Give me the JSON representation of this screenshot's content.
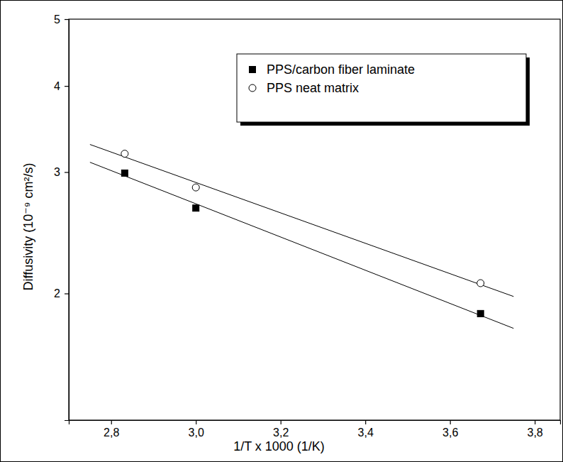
{
  "chart_data": {
    "type": "scatter",
    "x_label": "1/T x 1000 (1/K)",
    "y_label": "Diffusivity (10⁻⁹ cm²/s)",
    "log": "y",
    "legend": "upper right",
    "xlim": [
      2.7,
      3.86
    ],
    "xticks": [
      {
        "value": 2.8,
        "label": "2,8"
      },
      {
        "value": 3.0,
        "label": "3,0"
      },
      {
        "value": 3.2,
        "label": "3,2"
      },
      {
        "value": 3.4,
        "label": "3,4"
      },
      {
        "value": 3.6,
        "label": "3,6"
      },
      {
        "value": 3.8,
        "label": "3,8"
      }
    ],
    "ylim": [
      1.31,
      5
    ],
    "yticks": [
      2,
      3,
      4,
      5
    ],
    "series": [
      {
        "name": "PPS/carbon fiber laminate",
        "color": "#000000",
        "marker": "filled-square",
        "x": [
          2.832,
          3.0,
          3.672
        ],
        "values": [
          2.99,
          2.66,
          1.87
        ],
        "fit": {
          "x": [
            2.75,
            3.75
          ],
          "values": [
            3.1,
            1.78
          ]
        }
      },
      {
        "name": "PPS neat matrix",
        "color": "#000000",
        "marker": "open-circle",
        "x": [
          2.832,
          3.0,
          3.672
        ],
        "values": [
          3.19,
          2.85,
          2.07
        ],
        "fit": {
          "x": [
            2.75,
            3.75
          ],
          "values": [
            3.29,
            1.98
          ]
        }
      }
    ]
  }
}
